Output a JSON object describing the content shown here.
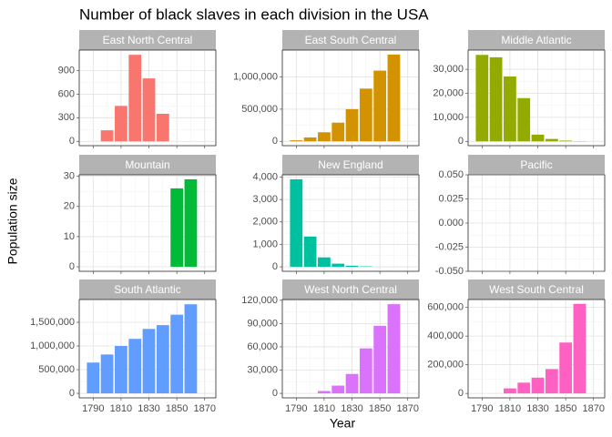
{
  "title": "Number of black slaves in each division in the USA",
  "x_label": "Year",
  "y_label": "Population size",
  "chart_data": [
    {
      "type": "bar",
      "title": "East North Central",
      "color": "#F8766D",
      "x": [
        1790,
        1800,
        1810,
        1820,
        1830,
        1840,
        1850,
        1860
      ],
      "values": [
        null,
        140,
        450,
        1100,
        800,
        350,
        null,
        null
      ],
      "xlim": [
        1780,
        1878
      ],
      "xticks": [
        1790,
        1810,
        1830,
        1850,
        1870
      ],
      "ylim": [
        -55,
        1160
      ],
      "yticks": [
        0,
        300,
        600,
        900
      ],
      "grid": true
    },
    {
      "type": "bar",
      "title": "East South Central",
      "color": "#D39200",
      "x": [
        1790,
        1800,
        1810,
        1820,
        1830,
        1840,
        1850,
        1860
      ],
      "values": [
        15000,
        60000,
        140000,
        290000,
        500000,
        820000,
        1100000,
        1350000
      ],
      "xlim": [
        1780,
        1878
      ],
      "xticks": [
        1790,
        1810,
        1830,
        1850,
        1870
      ],
      "ylim": [
        -68000,
        1420000
      ],
      "yticks": [
        0,
        {
          "value": 500000,
          "label": "500,000"
        },
        {
          "value": 1000000,
          "label": "1,000,000"
        }
      ],
      "grid": true
    },
    {
      "type": "bar",
      "title": "Middle Atlantic",
      "color": "#93AA00",
      "x": [
        1790,
        1800,
        1810,
        1820,
        1830,
        1840,
        1850,
        1860
      ],
      "values": [
        36000,
        35000,
        27000,
        18000,
        2800,
        1000,
        300,
        100
      ],
      "xlim": [
        1780,
        1878
      ],
      "xticks": [
        1790,
        1810,
        1830,
        1850,
        1870
      ],
      "ylim": [
        -1800,
        38000
      ],
      "yticks": [
        0,
        {
          "value": 10000,
          "label": "10,000"
        },
        {
          "value": 20000,
          "label": "20,000"
        },
        {
          "value": 30000,
          "label": "30,000"
        }
      ],
      "grid": true
    },
    {
      "type": "bar",
      "title": "Mountain",
      "color": "#00BA38",
      "x": [
        1790,
        1800,
        1810,
        1820,
        1830,
        1840,
        1850,
        1860
      ],
      "values": [
        null,
        null,
        null,
        null,
        null,
        null,
        26,
        29
      ],
      "xlim": [
        1780,
        1878
      ],
      "xticks": [
        1790,
        1810,
        1830,
        1850,
        1870
      ],
      "ylim": [
        -1.5,
        30.5
      ],
      "yticks": [
        0,
        10,
        20,
        30
      ],
      "grid": true
    },
    {
      "type": "bar",
      "title": "New England",
      "color": "#00C19F",
      "x": [
        1790,
        1800,
        1810,
        1820,
        1830,
        1840,
        1850,
        1860
      ],
      "values": [
        3900,
        1350,
        420,
        140,
        50,
        20,
        null,
        null
      ],
      "xlim": [
        1780,
        1878
      ],
      "xticks": [
        1790,
        1810,
        1830,
        1850,
        1870
      ],
      "ylim": [
        -200,
        4100
      ],
      "yticks": [
        0,
        {
          "value": 1000,
          "label": "1,000"
        },
        {
          "value": 2000,
          "label": "2,000"
        },
        {
          "value": 3000,
          "label": "3,000"
        },
        {
          "value": 4000,
          "label": "4,000"
        }
      ],
      "grid": true
    },
    {
      "type": "bar",
      "title": "Pacific",
      "color": "#00B9E3",
      "x": [
        1790,
        1800,
        1810,
        1820,
        1830,
        1840,
        1850,
        1860
      ],
      "values": [
        null,
        null,
        null,
        null,
        null,
        null,
        null,
        null
      ],
      "xlim": [
        1780,
        1878
      ],
      "xticks": [
        1790,
        1810,
        1830,
        1850,
        1870
      ],
      "ylim": [
        -0.05,
        0.05
      ],
      "yticks": [
        {
          "value": -0.05,
          "label": "-0.050"
        },
        {
          "value": -0.025,
          "label": "-0.025"
        },
        {
          "value": 0,
          "label": "0.000"
        },
        {
          "value": 0.025,
          "label": "0.025"
        },
        {
          "value": 0.05,
          "label": "0.050"
        }
      ],
      "grid": true
    },
    {
      "type": "bar",
      "title": "South Atlantic",
      "color": "#619CFF",
      "x": [
        1790,
        1800,
        1810,
        1820,
        1830,
        1840,
        1850,
        1860
      ],
      "values": [
        650000,
        820000,
        1000000,
        1150000,
        1360000,
        1440000,
        1660000,
        1880000
      ],
      "xlim": [
        1780,
        1878
      ],
      "xticks": [
        1790,
        1810,
        1830,
        1850,
        1870
      ],
      "ylim": [
        -95000,
        1980000
      ],
      "yticks": [
        0,
        {
          "value": 500000,
          "label": "500,000"
        },
        {
          "value": 1000000,
          "label": "1,000,000"
        },
        {
          "value": 1500000,
          "label": "1,500,000"
        }
      ],
      "grid": true
    },
    {
      "type": "bar",
      "title": "West North Central",
      "color": "#DB72FB",
      "x": [
        1790,
        1800,
        1810,
        1820,
        1830,
        1840,
        1850,
        1860
      ],
      "values": [
        null,
        null,
        3000,
        10000,
        25000,
        58000,
        87000,
        115000
      ],
      "xlim": [
        1780,
        1878
      ],
      "xticks": [
        1790,
        1810,
        1830,
        1850,
        1870
      ],
      "ylim": [
        -5800,
        121000
      ],
      "yticks": [
        0,
        {
          "value": 30000,
          "label": "30,000"
        },
        {
          "value": 60000,
          "label": "60,000"
        },
        {
          "value": 90000,
          "label": "90,000"
        },
        {
          "value": 120000,
          "label": "120,000"
        }
      ],
      "grid": true
    },
    {
      "type": "bar",
      "title": "West South Central",
      "color": "#FF61C3",
      "x": [
        1790,
        1800,
        1810,
        1820,
        1830,
        1840,
        1850,
        1860
      ],
      "values": [
        null,
        null,
        35000,
        75000,
        110000,
        170000,
        355000,
        625000
      ],
      "xlim": [
        1780,
        1878
      ],
      "xticks": [
        1790,
        1810,
        1830,
        1850,
        1870
      ],
      "ylim": [
        -31000,
        655000
      ],
      "yticks": [
        0,
        {
          "value": 200000,
          "label": "200,000"
        },
        {
          "value": 400000,
          "label": "400,000"
        },
        {
          "value": 600000,
          "label": "600,000"
        }
      ],
      "grid": true
    }
  ]
}
